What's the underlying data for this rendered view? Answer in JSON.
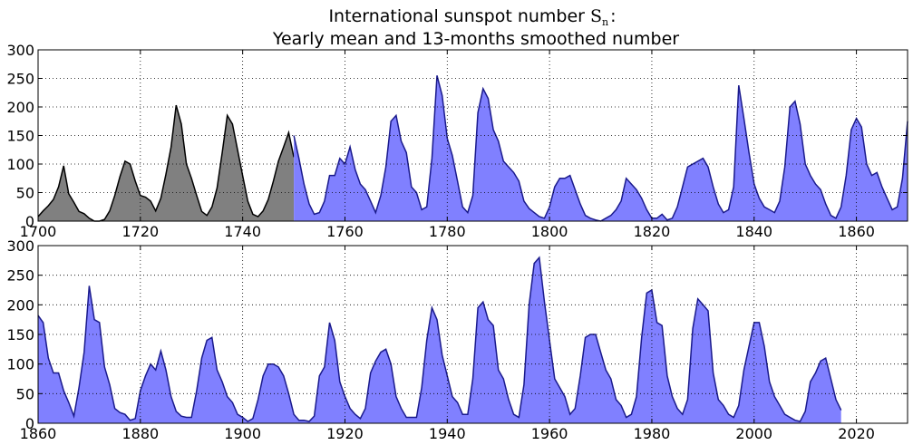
{
  "chart_data": [
    {
      "type": "area",
      "title_line1_prefix": "International sunspot number ",
      "title_symbol": "S",
      "title_subscript": "n",
      "title_colon": ":",
      "title_line2": "Yearly mean and 13-months smoothed number",
      "xlim": [
        1700,
        1870
      ],
      "ylim": [
        0,
        300
      ],
      "xticks": [
        1700,
        1720,
        1740,
        1760,
        1780,
        1800,
        1820,
        1840,
        1860
      ],
      "yticks": [
        0,
        50,
        100,
        150,
        200,
        250,
        300
      ],
      "grid": true,
      "series": [
        {
          "name": "Yearly mean",
          "fill": "#808080",
          "stroke": "#000000",
          "x": [
            1700,
            1701,
            1702,
            1703,
            1704,
            1705,
            1706,
            1707,
            1708,
            1709,
            1710,
            1711,
            1712,
            1713,
            1714,
            1715,
            1716,
            1717,
            1718,
            1719,
            1720,
            1721,
            1722,
            1723,
            1724,
            1725,
            1726,
            1727,
            1728,
            1729,
            1730,
            1731,
            1732,
            1733,
            1734,
            1735,
            1736,
            1737,
            1738,
            1739,
            1740,
            1741,
            1742,
            1743,
            1744,
            1745,
            1746,
            1747,
            1748,
            1749,
            1750
          ],
          "values": [
            8,
            18,
            27,
            38,
            60,
            97,
            48,
            33,
            17,
            13,
            5,
            0,
            0,
            3,
            18,
            45,
            78,
            105,
            100,
            70,
            45,
            42,
            35,
            18,
            40,
            82,
            130,
            203,
            170,
            100,
            75,
            45,
            17,
            10,
            25,
            58,
            120,
            185,
            170,
            125,
            80,
            35,
            12,
            8,
            18,
            38,
            70,
            105,
            130,
            155,
            112
          ]
        },
        {
          "name": "13-months smoothed",
          "fill": "#8080ff",
          "stroke": "#1a1a8c",
          "x": [
            1750,
            1751,
            1752,
            1753,
            1754,
            1755,
            1756,
            1757,
            1758,
            1759,
            1760,
            1761,
            1762,
            1763,
            1764,
            1765,
            1766,
            1767,
            1768,
            1769,
            1770,
            1771,
            1772,
            1773,
            1774,
            1775,
            1776,
            1777,
            1778,
            1779,
            1780,
            1781,
            1782,
            1783,
            1784,
            1785,
            1786,
            1787,
            1788,
            1789,
            1790,
            1791,
            1792,
            1793,
            1794,
            1795,
            1796,
            1797,
            1798,
            1799,
            1800,
            1801,
            1802,
            1803,
            1804,
            1805,
            1806,
            1807,
            1808,
            1809,
            1810,
            1811,
            1812,
            1813,
            1814,
            1815,
            1816,
            1817,
            1818,
            1819,
            1820,
            1821,
            1822,
            1823,
            1824,
            1825,
            1826,
            1827,
            1828,
            1829,
            1830,
            1831,
            1832,
            1833,
            1834,
            1835,
            1836,
            1837,
            1838,
            1839,
            1840,
            1841,
            1842,
            1843,
            1844,
            1845,
            1846,
            1847,
            1848,
            1849,
            1850,
            1851,
            1852,
            1853,
            1854,
            1855,
            1856,
            1857,
            1858,
            1859,
            1860,
            1861,
            1862,
            1863,
            1864,
            1865,
            1866,
            1867,
            1868,
            1869,
            1870
          ],
          "values": [
            150,
            110,
            65,
            30,
            12,
            15,
            35,
            80,
            80,
            110,
            100,
            130,
            90,
            65,
            55,
            35,
            15,
            45,
            95,
            175,
            185,
            140,
            120,
            60,
            50,
            20,
            25,
            110,
            255,
            220,
            145,
            115,
            70,
            25,
            15,
            45,
            190,
            232,
            215,
            160,
            140,
            105,
            95,
            85,
            70,
            35,
            22,
            15,
            8,
            5,
            25,
            60,
            75,
            75,
            80,
            55,
            30,
            10,
            5,
            2,
            0,
            5,
            10,
            20,
            35,
            75,
            65,
            55,
            40,
            20,
            5,
            5,
            12,
            2,
            5,
            25,
            60,
            95,
            100,
            105,
            110,
            95,
            60,
            30,
            15,
            20,
            60,
            238,
            180,
            120,
            65,
            40,
            25,
            20,
            15,
            35,
            95,
            200,
            210,
            170,
            100,
            80,
            65,
            55,
            30,
            10,
            5,
            25,
            80,
            160,
            180,
            165,
            100,
            80,
            85,
            60,
            40,
            20,
            25,
            75,
            175
          ]
        }
      ]
    },
    {
      "type": "area",
      "xlim": [
        1860,
        2030
      ],
      "ylim": [
        0,
        300
      ],
      "xticks": [
        1860,
        1880,
        1900,
        1920,
        1940,
        1960,
        1980,
        2000,
        2020
      ],
      "yticks": [
        0,
        50,
        100,
        150,
        200,
        250,
        300
      ],
      "grid": true,
      "series": [
        {
          "name": "13-months smoothed",
          "fill": "#8080ff",
          "stroke": "#1a1a8c",
          "x": [
            1860,
            1861,
            1862,
            1863,
            1864,
            1865,
            1866,
            1867,
            1868,
            1869,
            1870,
            1871,
            1872,
            1873,
            1874,
            1875,
            1876,
            1877,
            1878,
            1879,
            1880,
            1881,
            1882,
            1883,
            1884,
            1885,
            1886,
            1887,
            1888,
            1889,
            1890,
            1891,
            1892,
            1893,
            1894,
            1895,
            1896,
            1897,
            1898,
            1899,
            1900,
            1901,
            1902,
            1903,
            1904,
            1905,
            1906,
            1907,
            1908,
            1909,
            1910,
            1911,
            1912,
            1913,
            1914,
            1915,
            1916,
            1917,
            1918,
            1919,
            1920,
            1921,
            1922,
            1923,
            1924,
            1925,
            1926,
            1927,
            1928,
            1929,
            1930,
            1931,
            1932,
            1933,
            1934,
            1935,
            1936,
            1937,
            1938,
            1939,
            1940,
            1941,
            1942,
            1943,
            1944,
            1945,
            1946,
            1947,
            1948,
            1949,
            1950,
            1951,
            1952,
            1953,
            1954,
            1955,
            1956,
            1957,
            1958,
            1959,
            1960,
            1961,
            1962,
            1963,
            1964,
            1965,
            1966,
            1967,
            1968,
            1969,
            1970,
            1971,
            1972,
            1973,
            1974,
            1975,
            1976,
            1977,
            1978,
            1979,
            1980,
            1981,
            1982,
            1983,
            1984,
            1985,
            1986,
            1987,
            1988,
            1989,
            1990,
            1991,
            1992,
            1993,
            1994,
            1995,
            1996,
            1997,
            1998,
            1999,
            2000,
            2001,
            2002,
            2003,
            2004,
            2005,
            2006,
            2007,
            2008,
            2009,
            2010,
            2011,
            2012,
            2013,
            2014,
            2015,
            2016,
            2017
          ],
          "values": [
            182,
            170,
            110,
            85,
            85,
            55,
            35,
            12,
            60,
            120,
            232,
            175,
            170,
            95,
            65,
            25,
            18,
            15,
            5,
            8,
            55,
            80,
            100,
            90,
            122,
            90,
            45,
            20,
            12,
            10,
            10,
            55,
            110,
            140,
            145,
            90,
            70,
            45,
            35,
            15,
            10,
            3,
            8,
            40,
            80,
            100,
            100,
            95,
            80,
            50,
            15,
            5,
            5,
            3,
            12,
            80,
            95,
            170,
            140,
            70,
            45,
            25,
            15,
            8,
            25,
            85,
            105,
            120,
            125,
            100,
            45,
            25,
            10,
            10,
            10,
            60,
            140,
            195,
            175,
            115,
            80,
            45,
            35,
            15,
            15,
            75,
            195,
            205,
            175,
            165,
            90,
            75,
            40,
            15,
            10,
            65,
            200,
            270,
            280,
            205,
            140,
            75,
            60,
            45,
            15,
            25,
            80,
            145,
            150,
            150,
            120,
            90,
            75,
            40,
            30,
            10,
            15,
            45,
            145,
            220,
            225,
            170,
            165,
            80,
            45,
            25,
            15,
            40,
            160,
            210,
            200,
            190,
            85,
            40,
            30,
            15,
            10,
            30,
            90,
            130,
            170,
            170,
            130,
            70,
            45,
            30,
            15,
            10,
            5,
            3,
            20,
            70,
            85,
            105,
            110,
            75,
            40,
            22
          ]
        }
      ]
    }
  ]
}
